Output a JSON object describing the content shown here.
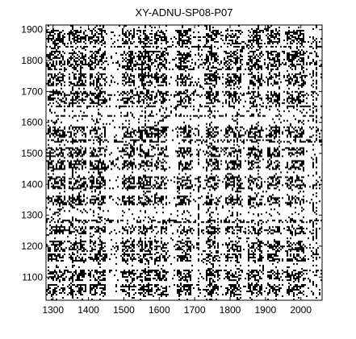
{
  "chart_data": {
    "type": "heatmap",
    "title": "XY-ADNU-SP08-P07",
    "xlabel": "",
    "ylabel": "",
    "xlim": [
      1280,
      2060
    ],
    "ylim": [
      1025,
      1915
    ],
    "x_ticks": [
      1300,
      1400,
      1500,
      1600,
      1700,
      1800,
      1900,
      2000
    ],
    "y_ticks": [
      1100,
      1200,
      1300,
      1400,
      1500,
      1600,
      1700,
      1800,
      1900
    ],
    "grid": false,
    "legend": "none",
    "colors": {
      "background": "#ffffff",
      "mark": "#000000"
    },
    "dense_x_bands": [
      [
        1285,
        1335
      ],
      [
        1345,
        1395
      ],
      [
        1405,
        1450
      ],
      [
        1495,
        1530
      ],
      [
        1540,
        1580
      ],
      [
        1585,
        1620
      ],
      [
        1650,
        1690
      ],
      [
        1730,
        1770
      ],
      [
        1785,
        1830
      ],
      [
        1850,
        1890
      ],
      [
        1905,
        1940
      ],
      [
        1960,
        2010
      ]
    ],
    "dense_y_bands": [
      [
        1040,
        1075
      ],
      [
        1085,
        1125
      ],
      [
        1150,
        1175
      ],
      [
        1180,
        1215
      ],
      [
        1240,
        1265
      ],
      [
        1330,
        1365
      ],
      [
        1385,
        1425
      ],
      [
        1445,
        1480
      ],
      [
        1490,
        1520
      ],
      [
        1550,
        1585
      ],
      [
        1660,
        1700
      ],
      [
        1715,
        1760
      ],
      [
        1770,
        1830
      ],
      [
        1850,
        1900
      ]
    ],
    "sparse_x_cols": [
      1355,
      1430,
      1560,
      1710,
      1745,
      1820,
      1880,
      2035,
      2045
    ],
    "sparse_y_rows": [
      1120,
      1280,
      1540,
      1620,
      1650,
      1690,
      1790,
      1845
    ]
  }
}
